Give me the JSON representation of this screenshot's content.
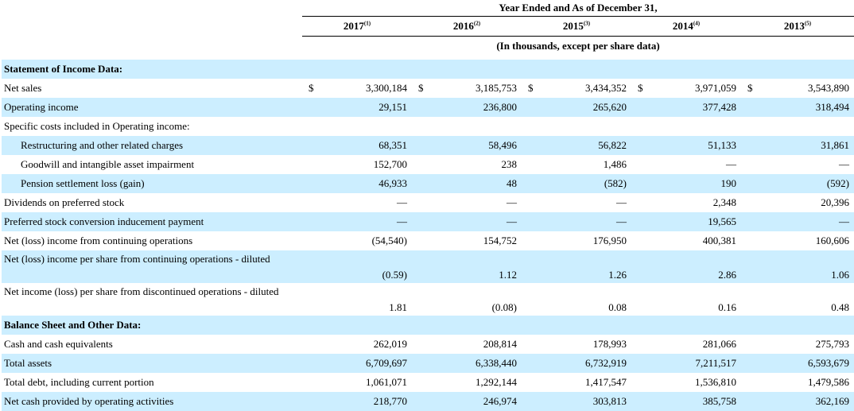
{
  "header": {
    "period_title": "Year Ended and As of December 31,",
    "units_note": "(In thousands, except per share data)",
    "years": [
      {
        "year": "2017",
        "note": "(1)"
      },
      {
        "year": "2016",
        "note": "(2)"
      },
      {
        "year": "2015",
        "note": "(3)"
      },
      {
        "year": "2014",
        "note": "(4)"
      },
      {
        "year": "2013",
        "note": "(5)"
      }
    ]
  },
  "sections": {
    "income": "Statement of Income Data:",
    "balance": "Balance Sheet and Other Data:"
  },
  "rows": {
    "net_sales": {
      "label": "Net sales",
      "cur": "$",
      "v": [
        "3,300,184",
        "3,185,753",
        "3,434,352",
        "3,971,059",
        "3,543,890"
      ]
    },
    "operating_income": {
      "label": "Operating income",
      "v": [
        "29,151",
        "236,800",
        "265,620",
        "377,428",
        "318,494"
      ]
    },
    "specific_costs": {
      "label": "Specific costs included in Operating income:"
    },
    "restructuring": {
      "label": "Restructuring and other related charges",
      "v": [
        "68,351",
        "58,496",
        "56,822",
        "51,133",
        "31,861"
      ]
    },
    "goodwill": {
      "label": "Goodwill and intangible asset impairment",
      "v": [
        "152,700",
        "238",
        "1,486",
        "—",
        "—"
      ]
    },
    "pension": {
      "label": "Pension settlement loss (gain)",
      "v": [
        "46,933",
        "48",
        "(582)",
        "190",
        "(592)"
      ]
    },
    "dividends": {
      "label": "Dividends on preferred stock",
      "v": [
        "—",
        "—",
        "—",
        "2,348",
        "20,396"
      ]
    },
    "pref_conv": {
      "label": "Preferred stock conversion inducement payment",
      "v": [
        "—",
        "—",
        "—",
        "19,565",
        "—"
      ]
    },
    "net_income_cont": {
      "label": "Net (loss) income from continuing operations",
      "v": [
        "(54,540)",
        "154,752",
        "176,950",
        "400,381",
        "160,606"
      ]
    },
    "eps_cont": {
      "label": "Net (loss) income per share from continuing operations - diluted",
      "v": [
        "(0.59)",
        "1.12",
        "1.26",
        "2.86",
        "1.06"
      ]
    },
    "eps_disc": {
      "label": "Net income (loss) per share from discontinued operations - diluted",
      "v": [
        "1.81",
        "(0.08)",
        "0.08",
        "0.16",
        "0.48"
      ]
    },
    "cash": {
      "label": "Cash and cash equivalents",
      "v": [
        "262,019",
        "208,814",
        "178,993",
        "281,066",
        "275,793"
      ]
    },
    "total_assets": {
      "label": "Total assets",
      "v": [
        "6,709,697",
        "6,338,440",
        "6,732,919",
        "7,211,517",
        "6,593,679"
      ]
    },
    "total_debt": {
      "label": "Total debt, including current portion",
      "v": [
        "1,061,071",
        "1,292,144",
        "1,417,547",
        "1,536,810",
        "1,479,586"
      ]
    },
    "op_cash": {
      "label": "Net cash provided by operating activities",
      "v": [
        "218,770",
        "246,974",
        "303,813",
        "385,758",
        "362,169"
      ]
    }
  }
}
